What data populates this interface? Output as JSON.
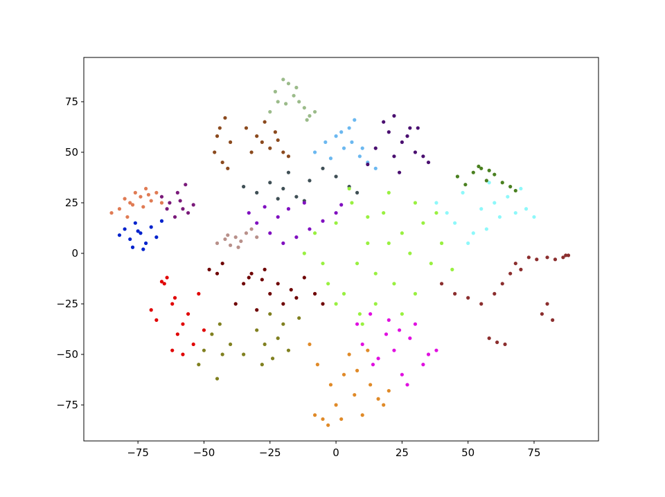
{
  "chart_data": {
    "type": "scatter",
    "xlim": [
      -95.5,
      99.4
    ],
    "ylim": [
      -92.8,
      96.9
    ],
    "xticks": [
      {
        "value": -75,
        "label": "−75"
      },
      {
        "value": -50,
        "label": "−50"
      },
      {
        "value": -25,
        "label": "−25"
      },
      0,
      25,
      50,
      75
    ],
    "yticks": [
      {
        "value": -75,
        "label": "−75"
      },
      {
        "value": -50,
        "label": "−50"
      },
      {
        "value": -25,
        "label": "−25"
      },
      0,
      25,
      50,
      75
    ],
    "series": [
      {
        "color": "#e07b54",
        "x": [
          -85,
          -82,
          -80,
          -78,
          -76,
          -74,
          -72,
          -70,
          -68,
          -66,
          -79,
          -73,
          -77,
          -71
        ],
        "values": [
          20,
          22,
          27,
          25,
          30,
          28,
          32,
          26,
          30,
          25,
          18,
          23,
          24,
          29
        ]
      },
      {
        "color": "#0022cc",
        "x": [
          -82,
          -80,
          -78,
          -76,
          -74,
          -72,
          -70,
          -68,
          -66,
          -77,
          -73,
          -75
        ],
        "values": [
          9,
          12,
          7,
          15,
          10,
          5,
          13,
          8,
          16,
          3,
          2,
          11
        ]
      },
      {
        "color": "#7a1a7a",
        "x": [
          -66,
          -63,
          -60,
          -58,
          -56,
          -54,
          -61,
          -57,
          -64,
          -59
        ],
        "values": [
          28,
          25,
          30,
          22,
          20,
          24,
          18,
          34,
          22,
          26
        ]
      },
      {
        "color": "#b8908a",
        "x": [
          -45,
          -42,
          -40,
          -38,
          -36,
          -34,
          -32,
          -30,
          -37,
          -41
        ],
        "values": [
          5,
          7,
          4,
          8,
          6,
          10,
          12,
          8,
          3,
          9
        ]
      },
      {
        "color": "#8b4a1e",
        "x": [
          -46,
          -44,
          -42,
          -40,
          -43,
          -45,
          -41,
          -34,
          -30,
          -28,
          -25,
          -23,
          -20,
          -18,
          -27,
          -22,
          -32
        ],
        "values": [
          50,
          62,
          67,
          55,
          45,
          58,
          42,
          62,
          58,
          55,
          52,
          60,
          50,
          48,
          65,
          56,
          50
        ]
      },
      {
        "color": "#9bbb8a",
        "x": [
          -25,
          -23,
          -20,
          -18,
          -16,
          -14,
          -12,
          -10,
          -8,
          -22,
          -15,
          -11,
          -19
        ],
        "values": [
          70,
          80,
          86,
          84,
          78,
          75,
          72,
          68,
          70,
          75,
          82,
          66,
          74
        ]
      },
      {
        "color": "#6bb8f0",
        "x": [
          -8,
          -4,
          0,
          3,
          5,
          7,
          9,
          12,
          15,
          2,
          6,
          -2,
          10
        ],
        "values": [
          50,
          55,
          58,
          52,
          62,
          66,
          48,
          45,
          42,
          60,
          55,
          47,
          52
        ]
      },
      {
        "color": "#4a0f70",
        "x": [
          18,
          20,
          22,
          25,
          28,
          30,
          33,
          35,
          15,
          12,
          24,
          27,
          31,
          22
        ],
        "values": [
          65,
          60,
          68,
          55,
          62,
          50,
          48,
          45,
          52,
          44,
          40,
          58,
          62,
          48
        ]
      },
      {
        "color": "#3f4f55",
        "x": [
          -35,
          -30,
          -25,
          -20,
          -15,
          -10,
          -5,
          0,
          5,
          8,
          -18,
          -12,
          -22
        ],
        "values": [
          33,
          30,
          35,
          32,
          28,
          36,
          42,
          38,
          33,
          30,
          40,
          26,
          27
        ]
      },
      {
        "color": "#8010c0",
        "x": [
          -33,
          -30,
          -25,
          -22,
          -18,
          -15,
          -10,
          -5,
          0,
          2,
          -20,
          -27,
          -12
        ],
        "values": [
          20,
          15,
          10,
          18,
          22,
          8,
          12,
          16,
          20,
          24,
          5,
          23,
          25
        ]
      },
      {
        "color": "#99f040",
        "x": [
          -12,
          -8,
          -5,
          0,
          3,
          6,
          9,
          12,
          15,
          18,
          20,
          22,
          25,
          28,
          30,
          33,
          36,
          40,
          44,
          10,
          5,
          0,
          15,
          25,
          30,
          20,
          -3,
          38,
          12,
          8
        ],
        "values": [
          0,
          10,
          -5,
          15,
          -20,
          25,
          -30,
          5,
          -10,
          20,
          30,
          -15,
          10,
          0,
          -20,
          15,
          -5,
          5,
          -8,
          -35,
          32,
          -25,
          -25,
          -30,
          25,
          5,
          -15,
          20,
          18,
          -5
        ]
      },
      {
        "color": "#8ef8fa",
        "x": [
          38,
          42,
          45,
          48,
          52,
          55,
          58,
          60,
          62,
          65,
          68,
          70,
          72,
          75,
          50,
          57
        ],
        "values": [
          25,
          20,
          15,
          30,
          10,
          22,
          35,
          25,
          18,
          28,
          20,
          32,
          22,
          18,
          5,
          12
        ]
      },
      {
        "color": "#4a8020",
        "x": [
          46,
          49,
          52,
          55,
          57,
          60,
          63,
          66,
          68,
          54,
          58
        ],
        "values": [
          38,
          34,
          40,
          42,
          36,
          39,
          35,
          33,
          31,
          43,
          41
        ]
      },
      {
        "color": "#8b2e2e",
        "x": [
          40,
          45,
          50,
          55,
          60,
          63,
          66,
          68,
          70,
          73,
          76,
          80,
          83,
          87,
          88,
          86,
          78,
          80,
          82,
          58,
          61,
          64
        ],
        "values": [
          -15,
          -20,
          -22,
          -25,
          -20,
          -15,
          -10,
          -5,
          -8,
          -2,
          -3,
          -2,
          -3,
          -1,
          -1,
          -2,
          -30,
          -25,
          -33,
          -42,
          -44,
          -45
        ]
      },
      {
        "color": "#e00000",
        "x": [
          -70,
          -68,
          -66,
          -64,
          -62,
          -60,
          -58,
          -56,
          -54,
          -52,
          -50,
          -62,
          -58,
          -65,
          -61
        ],
        "values": [
          -28,
          -33,
          -14,
          -12,
          -25,
          -40,
          -35,
          -30,
          -45,
          -20,
          -38,
          -48,
          -50,
          -15,
          -22
        ]
      },
      {
        "color": "#6e0000",
        "x": [
          -48,
          -45,
          -43,
          -38,
          -35,
          -32,
          -30,
          -28,
          -25,
          -22,
          -20,
          -17,
          -15,
          -12,
          -8,
          -5,
          -33,
          -27
        ],
        "values": [
          -8,
          -10,
          -5,
          -25,
          -15,
          -10,
          -28,
          -13,
          -20,
          -15,
          -25,
          -18,
          -22,
          -12,
          -20,
          -25,
          -12,
          -8
        ]
      },
      {
        "color": "#808020",
        "x": [
          -52,
          -50,
          -47,
          -45,
          -43,
          -40,
          -44,
          -35,
          -30,
          -27,
          -25,
          -22,
          -20,
          -18,
          -14,
          -28,
          -24
        ],
        "values": [
          -55,
          -48,
          -40,
          -62,
          -50,
          -45,
          -35,
          -50,
          -38,
          -45,
          -30,
          -42,
          -35,
          -48,
          -32,
          -55,
          -52
        ]
      },
      {
        "color": "#e08a28",
        "x": [
          -10,
          -7,
          -5,
          -2,
          0,
          3,
          5,
          7,
          10,
          13,
          16,
          18,
          20,
          -8,
          -3,
          2,
          8,
          12
        ],
        "values": [
          -45,
          -55,
          -82,
          -65,
          -75,
          -60,
          -50,
          -70,
          -80,
          -65,
          -72,
          -75,
          -68,
          -80,
          -85,
          -82,
          -58,
          -48
        ]
      },
      {
        "color": "#e010e0",
        "x": [
          8,
          10,
          13,
          16,
          19,
          22,
          25,
          28,
          30,
          33,
          35,
          38,
          20,
          27,
          24,
          14
        ],
        "values": [
          -35,
          -45,
          -30,
          -52,
          -40,
          -48,
          -60,
          -42,
          -35,
          -55,
          -50,
          -48,
          -33,
          -65,
          -38,
          -55
        ]
      }
    ]
  }
}
